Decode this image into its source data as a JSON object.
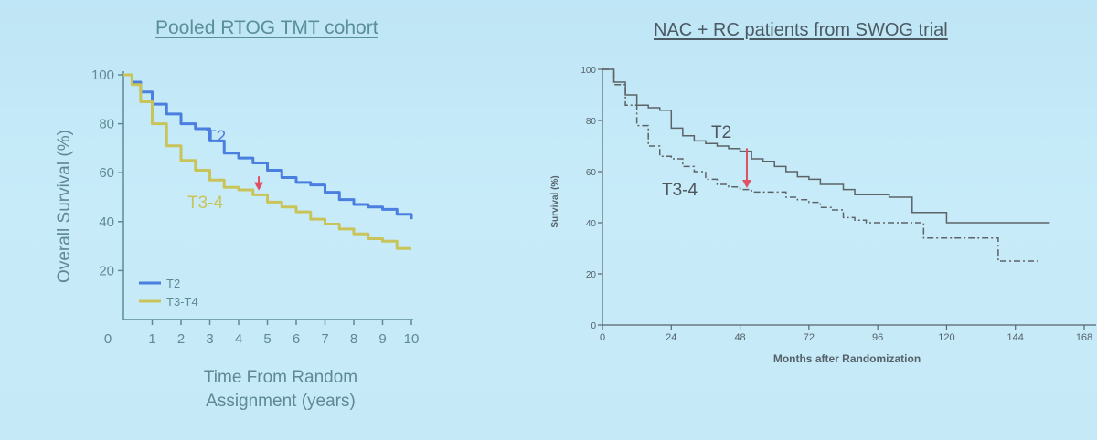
{
  "chart_data": [
    {
      "type": "line",
      "title": "Pooled RTOG TMT cohort",
      "xlabel": "Time From Random Assignment (years)",
      "ylabel": "Overall Survival (%)",
      "xlim": [
        0,
        10
      ],
      "ylim": [
        0,
        100
      ],
      "x_ticks": [
        "0",
        "1",
        "2",
        "3",
        "4",
        "5",
        "6",
        "7",
        "8",
        "9",
        "10"
      ],
      "y_ticks": [
        "20",
        "40",
        "60",
        "80",
        "100"
      ],
      "legend": "bottom-left",
      "series": [
        {
          "name": "T2",
          "label": "T2",
          "color": "#4a7fe0",
          "x": [
            0,
            0.3,
            0.6,
            1.0,
            1.5,
            2.0,
            2.5,
            3.0,
            3.5,
            4.0,
            4.5,
            5.0,
            5.5,
            6.0,
            6.5,
            7.0,
            7.5,
            8.0,
            8.5,
            9.0,
            9.5,
            10.0
          ],
          "y": [
            100,
            97,
            93,
            88,
            84,
            80,
            78,
            73,
            68,
            66,
            64,
            61,
            58,
            56,
            55,
            52,
            49,
            47,
            46,
            45,
            43,
            41
          ]
        },
        {
          "name": "T3-T4",
          "label": "T3-4",
          "color": "#c9c45a",
          "x": [
            0,
            0.3,
            0.6,
            1.0,
            1.5,
            2.0,
            2.5,
            3.0,
            3.5,
            4.0,
            4.5,
            5.0,
            5.5,
            6.0,
            6.5,
            7.0,
            7.5,
            8.0,
            8.5,
            9.0,
            9.5,
            10.0
          ],
          "y": [
            100,
            96,
            89,
            80,
            71,
            65,
            61,
            57,
            54,
            53,
            51,
            48,
            46,
            44,
            41,
            39,
            37,
            35,
            33,
            32,
            29,
            29
          ]
        }
      ],
      "annotations": [
        {
          "type": "arrow",
          "x": 4.7,
          "y_from": 60,
          "y_to": 52,
          "color": "#e05060"
        }
      ]
    },
    {
      "type": "line",
      "title": "NAC + RC patients from SWOG trial",
      "xlabel": "Months after Randomization",
      "ylabel": "Survival (%)",
      "xlim": [
        0,
        168
      ],
      "ylim": [
        0,
        100
      ],
      "x_ticks": [
        "0",
        "24",
        "48",
        "72",
        "96",
        "120",
        "144",
        "168"
      ],
      "y_ticks": [
        "0",
        "20",
        "40",
        "60",
        "80",
        "100"
      ],
      "series": [
        {
          "name": "T2",
          "label": "T2",
          "style": "solid",
          "x": [
            0,
            4,
            8,
            12,
            16,
            20,
            24,
            28,
            32,
            36,
            40,
            44,
            48,
            52,
            56,
            60,
            64,
            68,
            72,
            76,
            80,
            84,
            88,
            92,
            96,
            100,
            104,
            108,
            112,
            116,
            120,
            132,
            144,
            156
          ],
          "y": [
            100,
            95,
            90,
            86,
            85,
            84,
            77,
            74,
            72,
            71,
            70,
            69,
            68,
            65,
            64,
            62,
            60,
            58,
            57,
            55,
            55,
            53,
            51,
            51,
            51,
            50,
            50,
            44,
            44,
            44,
            40,
            40,
            40,
            40
          ]
        },
        {
          "name": "T3-4",
          "label": "T3-4",
          "style": "dashdot",
          "x": [
            0,
            4,
            8,
            12,
            16,
            20,
            24,
            28,
            32,
            36,
            40,
            44,
            48,
            52,
            56,
            60,
            64,
            68,
            72,
            76,
            80,
            84,
            88,
            92,
            96,
            100,
            104,
            108,
            112,
            116,
            120,
            132,
            138,
            144,
            152
          ],
          "y": [
            100,
            94,
            86,
            78,
            70,
            66,
            65,
            62,
            60,
            57,
            55,
            54,
            53,
            52,
            52,
            52,
            50,
            49,
            48,
            46,
            45,
            42,
            41,
            40,
            40,
            40,
            40,
            40,
            34,
            34,
            34,
            34,
            25,
            25,
            25
          ]
        }
      ],
      "annotations": [
        {
          "type": "arrow",
          "x": 51,
          "y_from": 67,
          "y_to": 55,
          "color": "#e05060"
        }
      ]
    }
  ]
}
